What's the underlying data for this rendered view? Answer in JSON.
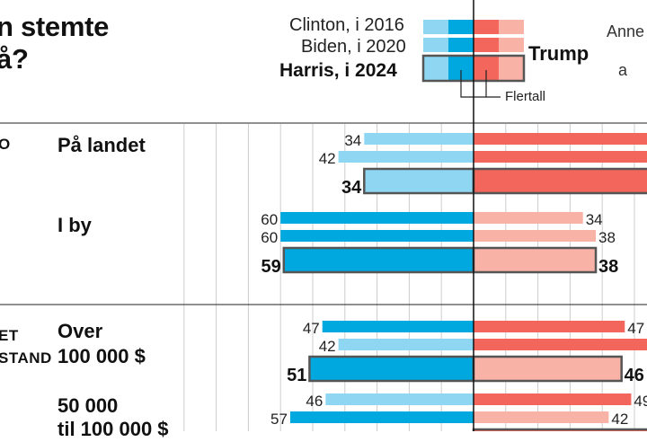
{
  "title_lines": [
    "n stemte",
    "å?"
  ],
  "legend": {
    "row1": "Clinton, i 2016",
    "row2": "Biden, i 2020",
    "row3": "Harris, i 2024",
    "trump": "Trump",
    "majority": "Flertall",
    "side_text_1": "Anne",
    "side_text_2": "a"
  },
  "group_labels": [
    "O",
    "ET",
    "STAND"
  ],
  "row_labels": {
    "rural": "På landet",
    "city": "I by",
    "over100k_1": "Over",
    "over100k_2": "100 000 $",
    "mid_1": "50 000",
    "mid_2": "til 100 000 $"
  },
  "colors": {
    "dem_2024": "#00a8e0",
    "dem_light": "#8fd6f2",
    "rep_2024": "#f2665c",
    "rep_light": "#f8b2a6",
    "outline": "#555555",
    "grid": "#cccccc",
    "axis": "#111111"
  },
  "chart_data": {
    "type": "bar",
    "orientation": "horizontal-diverging",
    "xlabel": "",
    "ylabel": "",
    "categories": [
      "På landet",
      "I by",
      "Over 100 000 $",
      "50 000 til 100 000 $"
    ],
    "series": [
      {
        "name": "Clinton, i 2016",
        "side": "dem",
        "values": [
          34,
          60,
          47,
          46
        ]
      },
      {
        "name": "Biden, i 2020",
        "side": "dem",
        "values": [
          42,
          60,
          42,
          57
        ]
      },
      {
        "name": "Harris, i 2024",
        "side": "dem",
        "values": [
          34,
          59,
          51,
          null
        ]
      },
      {
        "name": "Trump 2016",
        "side": "rep",
        "values": [
          null,
          34,
          47,
          49
        ]
      },
      {
        "name": "Trump 2020",
        "side": "rep",
        "values": [
          null,
          38,
          null,
          42
        ]
      },
      {
        "name": "Trump 2024",
        "side": "rep",
        "values": [
          null,
          38,
          46,
          null
        ]
      }
    ],
    "value_labels": {
      "dem": [
        [
          "34",
          "42",
          "34"
        ],
        [
          "60",
          "60",
          "59"
        ],
        [
          "47",
          "42",
          "51"
        ],
        [
          "46",
          "57",
          ""
        ]
      ],
      "rep": [
        [
          "",
          "",
          ""
        ],
        [
          "34",
          "38",
          "38"
        ],
        [
          "47",
          "",
          "46"
        ],
        [
          "49",
          "42",
          ""
        ]
      ]
    },
    "grid": true,
    "legend_position": "top"
  }
}
